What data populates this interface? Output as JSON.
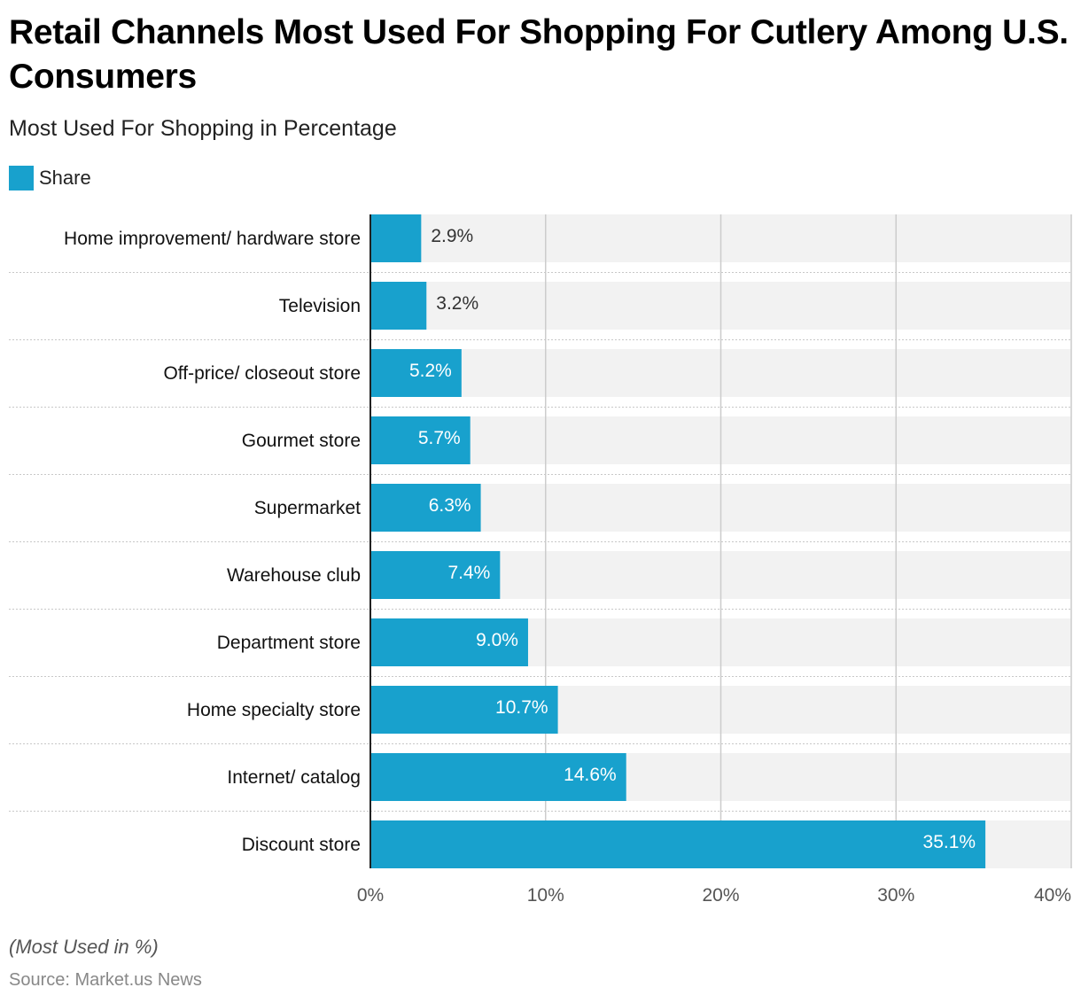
{
  "header": {
    "title": "Retail Channels Most Used For Shopping For Cutlery Among U.S. Consumers",
    "subtitle": "Most Used For Shopping in Percentage"
  },
  "legend": {
    "label": "Share",
    "color": "#18a1cd"
  },
  "footer": {
    "note": "(Most Used in %)",
    "source": "Source: Market.us News"
  },
  "chart_data": {
    "type": "bar",
    "orientation": "horizontal",
    "title": "Retail Channels Most Used For Shopping For Cutlery Among U.S. Consumers",
    "subtitle": "Most Used For Shopping in Percentage",
    "categories": [
      "Home improvement/ hardware store",
      "Television",
      "Off-price/ closeout store",
      "Gourmet store",
      "Supermarket",
      "Warehouse club",
      "Department store",
      "Home specialty store",
      "Internet/ catalog",
      "Discount store"
    ],
    "series": [
      {
        "name": "Share",
        "color": "#18a1cd",
        "values": [
          2.9,
          3.2,
          5.2,
          5.7,
          6.3,
          7.4,
          9.0,
          10.7,
          14.6,
          35.1
        ]
      }
    ],
    "value_labels": [
      "2.9%",
      "3.2%",
      "5.2%",
      "5.7%",
      "6.3%",
      "7.4%",
      "9.0%",
      "10.7%",
      "14.6%",
      "35.1%"
    ],
    "xlim": [
      0,
      40
    ],
    "xticks": [
      0,
      10,
      20,
      30,
      40
    ],
    "xtick_labels": [
      "0%",
      "10%",
      "20%",
      "30%",
      "40%"
    ],
    "xlabel": "",
    "ylabel": "",
    "grid": true,
    "legend_position": "top-left",
    "colors": {
      "bar": "#18a1cd",
      "track": "#f2f2f2",
      "grid": "#cccccc",
      "separator": "#c8c8c8",
      "label_inside": "#ffffff",
      "label_outside": "#333333"
    }
  }
}
